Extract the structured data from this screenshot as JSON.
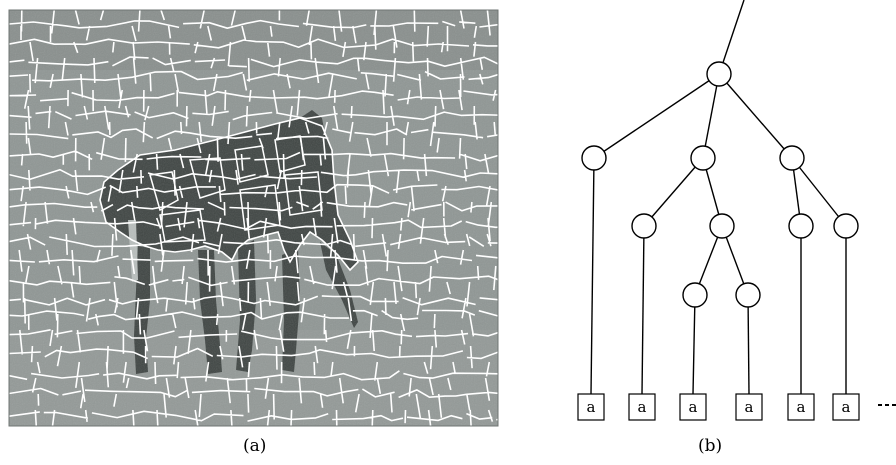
{
  "figure": {
    "panel_a": {
      "caption": "(a)"
    },
    "panel_b": {
      "caption": "(b)",
      "leaf_label": "a"
    }
  },
  "colors": {
    "image_gray": "#8f9694",
    "animal": "#3f4543",
    "boundary": "#ffffff",
    "ink": "#000000"
  }
}
